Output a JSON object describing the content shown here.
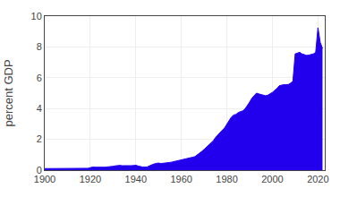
{
  "chart_data": {
    "type": "area",
    "ylabel": "percent GDP",
    "color": "#2200ee",
    "grid": true,
    "xlim": [
      1900,
      2023
    ],
    "ylim": [
      0,
      10
    ],
    "xticks": [
      1900,
      1920,
      1940,
      1960,
      1980,
      2000,
      2020
    ],
    "yticks": [
      0,
      2,
      4,
      6,
      8,
      10
    ],
    "x": [
      1900,
      1901,
      1902,
      1903,
      1904,
      1905,
      1906,
      1907,
      1908,
      1909,
      1910,
      1911,
      1912,
      1913,
      1914,
      1915,
      1916,
      1917,
      1918,
      1919,
      1920,
      1921,
      1922,
      1923,
      1924,
      1925,
      1926,
      1927,
      1928,
      1929,
      1930,
      1931,
      1932,
      1933,
      1934,
      1935,
      1936,
      1937,
      1938,
      1939,
      1940,
      1941,
      1942,
      1943,
      1944,
      1945,
      1946,
      1947,
      1948,
      1949,
      1950,
      1951,
      1952,
      1953,
      1954,
      1955,
      1956,
      1957,
      1958,
      1959,
      1960,
      1961,
      1962,
      1963,
      1964,
      1965,
      1966,
      1967,
      1968,
      1969,
      1970,
      1971,
      1972,
      1973,
      1974,
      1975,
      1976,
      1977,
      1978,
      1979,
      1980,
      1981,
      1982,
      1983,
      1984,
      1985,
      1986,
      1987,
      1988,
      1989,
      1990,
      1991,
      1992,
      1993,
      1994,
      1995,
      1996,
      1997,
      1998,
      1999,
      2000,
      2001,
      2002,
      2003,
      2004,
      2005,
      2006,
      2007,
      2008,
      2009,
      2010,
      2011,
      2012,
      2013,
      2014,
      2015,
      2016,
      2017,
      2018,
      2019,
      2020,
      2021,
      2022
    ],
    "values": [
      0.1,
      0.1,
      0.1,
      0.1,
      0.1,
      0.1,
      0.1,
      0.1,
      0.11,
      0.11,
      0.11,
      0.11,
      0.12,
      0.12,
      0.13,
      0.13,
      0.12,
      0.11,
      0.1,
      0.12,
      0.16,
      0.2,
      0.19,
      0.18,
      0.18,
      0.19,
      0.19,
      0.2,
      0.21,
      0.21,
      0.25,
      0.28,
      0.3,
      0.31,
      0.29,
      0.28,
      0.27,
      0.27,
      0.29,
      0.3,
      0.32,
      0.27,
      0.22,
      0.2,
      0.2,
      0.21,
      0.28,
      0.35,
      0.4,
      0.44,
      0.46,
      0.43,
      0.44,
      0.45,
      0.48,
      0.5,
      0.53,
      0.56,
      0.59,
      0.62,
      0.65,
      0.69,
      0.72,
      0.75,
      0.79,
      0.84,
      0.88,
      0.98,
      1.1,
      1.22,
      1.35,
      1.48,
      1.62,
      1.74,
      1.9,
      2.12,
      2.3,
      2.46,
      2.6,
      2.74,
      2.95,
      3.22,
      3.45,
      3.58,
      3.62,
      3.74,
      3.8,
      3.85,
      3.98,
      4.18,
      4.42,
      4.68,
      4.85,
      5.0,
      4.95,
      4.9,
      4.87,
      4.83,
      4.87,
      4.95,
      5.05,
      5.18,
      5.3,
      5.48,
      5.52,
      5.55,
      5.55,
      5.56,
      5.65,
      5.78,
      7.55,
      7.6,
      7.65,
      7.55,
      7.5,
      7.45,
      7.47,
      7.5,
      7.55,
      7.65,
      9.25,
      8.3,
      7.9
    ]
  }
}
